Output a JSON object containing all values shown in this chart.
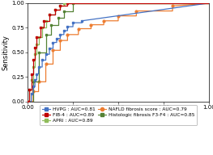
{
  "xlabel": "1-Specificity",
  "ylabel": "Sensitivity",
  "xlim": [
    0.0,
    1.0
  ],
  "ylim": [
    0.0,
    1.0
  ],
  "xticks": [
    0.0,
    0.25,
    0.5,
    0.75,
    1.0
  ],
  "yticks": [
    0.0,
    0.25,
    0.5,
    0.75,
    1.0
  ],
  "background_color": "#ffffff",
  "tick_fontsize": 5,
  "label_fontsize": 6,
  "legend_fontsize": 4.2,
  "hvpg_fpr": [
    0.0,
    0.02,
    0.02,
    0.03,
    0.03,
    0.04,
    0.04,
    0.05,
    0.05,
    0.06,
    0.06,
    0.08,
    0.08,
    0.1,
    0.1,
    0.12,
    0.12,
    0.14,
    0.14,
    0.16,
    0.16,
    0.18,
    0.18,
    0.2,
    0.2,
    0.22,
    0.22,
    0.25,
    0.25,
    0.3,
    0.3,
    1.0
  ],
  "hvpg_tpr": [
    0.0,
    0.0,
    0.08,
    0.08,
    0.15,
    0.15,
    0.22,
    0.22,
    0.28,
    0.28,
    0.35,
    0.35,
    0.42,
    0.42,
    0.48,
    0.48,
    0.54,
    0.54,
    0.6,
    0.6,
    0.64,
    0.64,
    0.68,
    0.68,
    0.72,
    0.72,
    0.76,
    0.76,
    0.8,
    0.8,
    0.82,
    1.0
  ],
  "apri_fpr": [
    0.0,
    0.01,
    0.01,
    0.02,
    0.02,
    0.03,
    0.03,
    0.04,
    0.04,
    0.05,
    0.05,
    0.06,
    0.06,
    0.08,
    0.08,
    0.1,
    0.1,
    0.12,
    0.12,
    0.15,
    0.15,
    0.18,
    0.18,
    0.2,
    0.2,
    1.0
  ],
  "apri_tpr": [
    0.0,
    0.0,
    0.12,
    0.12,
    0.22,
    0.22,
    0.35,
    0.35,
    0.48,
    0.48,
    0.58,
    0.58,
    0.65,
    0.65,
    0.75,
    0.75,
    0.82,
    0.82,
    0.88,
    0.88,
    0.93,
    0.93,
    0.97,
    0.97,
    1.0,
    1.0
  ],
  "hist_fpr": [
    0.0,
    0.03,
    0.03,
    0.06,
    0.06,
    0.1,
    0.1,
    0.13,
    0.13,
    0.17,
    0.17,
    0.2,
    0.2,
    0.25,
    0.25,
    1.0
  ],
  "hist_tpr": [
    0.0,
    0.0,
    0.2,
    0.2,
    0.5,
    0.5,
    0.68,
    0.68,
    0.78,
    0.78,
    0.85,
    0.85,
    0.92,
    0.92,
    1.0,
    1.0
  ],
  "fib4_fpr": [
    0.0,
    0.01,
    0.01,
    0.02,
    0.02,
    0.03,
    0.03,
    0.04,
    0.04,
    0.05,
    0.05,
    0.07,
    0.07,
    0.09,
    0.09,
    0.12,
    0.12,
    0.15,
    0.15,
    0.18,
    0.18,
    0.22,
    0.22,
    1.0
  ],
  "fib4_tpr": [
    0.0,
    0.0,
    0.12,
    0.12,
    0.28,
    0.28,
    0.42,
    0.42,
    0.55,
    0.55,
    0.65,
    0.65,
    0.75,
    0.75,
    0.82,
    0.82,
    0.88,
    0.88,
    0.93,
    0.93,
    0.97,
    0.97,
    1.0,
    1.0
  ],
  "nafld_fpr": [
    0.0,
    0.03,
    0.03,
    0.06,
    0.06,
    0.1,
    0.1,
    0.14,
    0.14,
    0.18,
    0.18,
    0.22,
    0.22,
    0.28,
    0.28,
    0.35,
    0.35,
    0.42,
    0.42,
    0.5,
    0.5,
    0.6,
    0.6,
    0.8,
    0.8,
    1.0
  ],
  "nafld_tpr": [
    0.0,
    0.0,
    0.1,
    0.1,
    0.2,
    0.2,
    0.38,
    0.38,
    0.52,
    0.52,
    0.62,
    0.62,
    0.68,
    0.68,
    0.74,
    0.74,
    0.78,
    0.78,
    0.82,
    0.82,
    0.87,
    0.87,
    0.92,
    0.92,
    0.97,
    1.0
  ],
  "hvpg_color": "#4472c4",
  "apri_color": "#8fbc5a",
  "hist_color": "#548235",
  "fib4_color": "#c00000",
  "nafld_color": "#ed7d31",
  "hvpg_label": "HVPG : AUC=0.81",
  "apri_label": "APRI : AUC=0.89",
  "hist_label": "Histologic fibrosis F3-F4 : AUC=0.85",
  "fib4_label": "FIB-4 : AUC=0.89",
  "nafld_label": "NAFLD fibrosis score : AUC=0.79"
}
